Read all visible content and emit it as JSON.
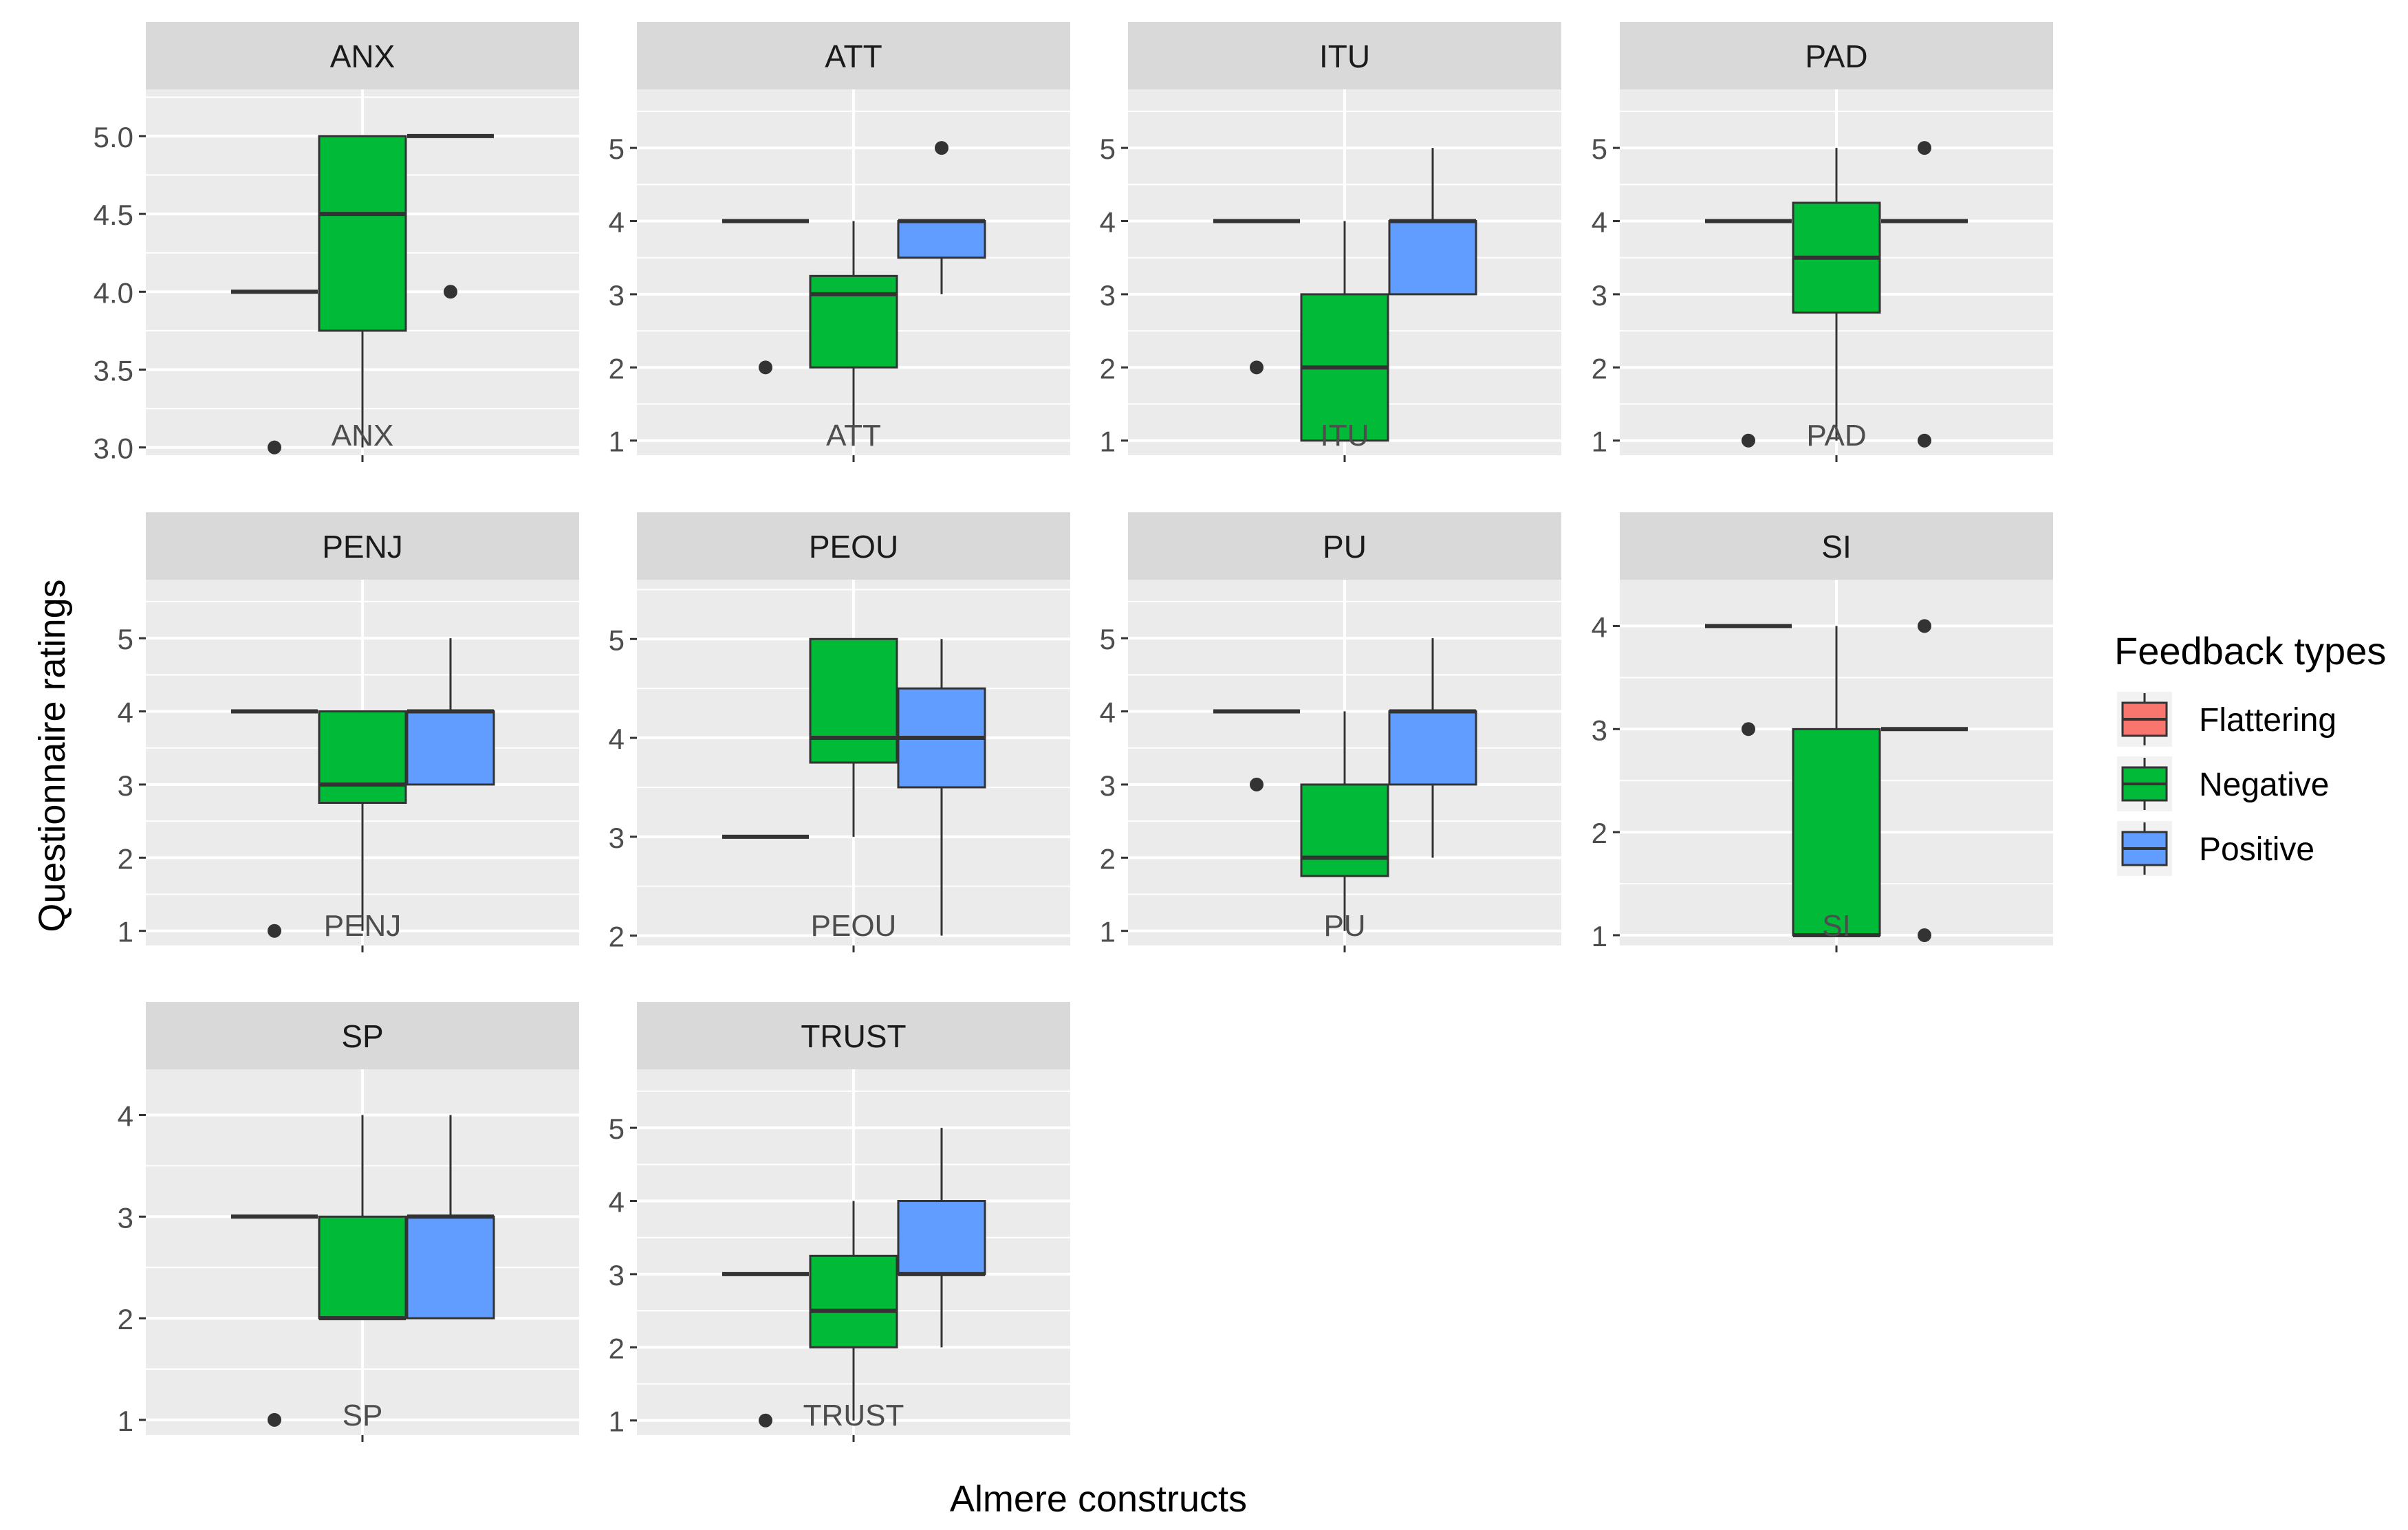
{
  "chart_data": {
    "type": "boxplot",
    "facet_layout": "facet_wrap, 4 columns, free y scales",
    "xlabel": "Almere constructs",
    "ylabel": "Questionnaire ratings",
    "legend": {
      "title": "Feedback types",
      "position": "right",
      "entries": [
        {
          "name": "Flattering",
          "color": "#F8766D"
        },
        {
          "name": "Negative",
          "color": "#00BA38"
        },
        {
          "name": "Positive",
          "color": "#619CFF"
        }
      ]
    },
    "panels": [
      {
        "name": "ANX",
        "ylim": [
          2.95,
          5.3
        ],
        "breaks": [
          3.0,
          3.5,
          4.0,
          4.5,
          5.0
        ],
        "labels": [
          "3.0",
          "3.5",
          "4.0",
          "4.5",
          "5.0"
        ],
        "boxes": [
          {
            "group": "Flattering",
            "min": 4,
            "q1": 4,
            "median": 4,
            "q3": 4,
            "max": 4,
            "outliers": [
              3
            ]
          },
          {
            "group": "Negative",
            "min": 3,
            "q1": 3.75,
            "median": 4.5,
            "q3": 5,
            "max": 5,
            "outliers": []
          },
          {
            "group": "Positive",
            "min": 5,
            "q1": 5,
            "median": 5,
            "q3": 5,
            "max": 5,
            "outliers": [
              4
            ]
          }
        ]
      },
      {
        "name": "ATT",
        "ylim": [
          0.8,
          5.8
        ],
        "breaks": [
          1,
          2,
          3,
          4,
          5
        ],
        "labels": [
          "1",
          "2",
          "3",
          "4",
          "5"
        ],
        "boxes": [
          {
            "group": "Flattering",
            "min": 4,
            "q1": 4,
            "median": 4,
            "q3": 4,
            "max": 4,
            "outliers": [
              2
            ]
          },
          {
            "group": "Negative",
            "min": 1,
            "q1": 2,
            "median": 3,
            "q3": 3.25,
            "max": 4,
            "outliers": []
          },
          {
            "group": "Positive",
            "min": 3,
            "q1": 3.5,
            "median": 4,
            "q3": 4,
            "max": 4,
            "outliers": [
              5
            ]
          }
        ]
      },
      {
        "name": "ITU",
        "ylim": [
          0.8,
          5.8
        ],
        "breaks": [
          1,
          2,
          3,
          4,
          5
        ],
        "labels": [
          "1",
          "2",
          "3",
          "4",
          "5"
        ],
        "boxes": [
          {
            "group": "Flattering",
            "min": 4,
            "q1": 4,
            "median": 4,
            "q3": 4,
            "max": 4,
            "outliers": [
              2
            ]
          },
          {
            "group": "Negative",
            "min": 1,
            "q1": 1,
            "median": 2,
            "q3": 3,
            "max": 4,
            "outliers": []
          },
          {
            "group": "Positive",
            "min": 3,
            "q1": 3,
            "median": 4,
            "q3": 4,
            "max": 5,
            "outliers": []
          }
        ]
      },
      {
        "name": "PAD",
        "ylim": [
          0.8,
          5.8
        ],
        "breaks": [
          1,
          2,
          3,
          4,
          5
        ],
        "labels": [
          "1",
          "2",
          "3",
          "4",
          "5"
        ],
        "boxes": [
          {
            "group": "Flattering",
            "min": 4,
            "q1": 4,
            "median": 4,
            "q3": 4,
            "max": 4,
            "outliers": [
              1
            ]
          },
          {
            "group": "Negative",
            "min": 1,
            "q1": 2.75,
            "median": 3.5,
            "q3": 4.25,
            "max": 5,
            "outliers": []
          },
          {
            "group": "Positive",
            "min": 4,
            "q1": 4,
            "median": 4,
            "q3": 4,
            "max": 4,
            "outliers": [
              5,
              1
            ]
          }
        ]
      },
      {
        "name": "PENJ",
        "ylim": [
          0.8,
          5.8
        ],
        "breaks": [
          1,
          2,
          3,
          4,
          5
        ],
        "labels": [
          "1",
          "2",
          "3",
          "4",
          "5"
        ],
        "boxes": [
          {
            "group": "Flattering",
            "min": 4,
            "q1": 4,
            "median": 4,
            "q3": 4,
            "max": 4,
            "outliers": [
              1
            ]
          },
          {
            "group": "Negative",
            "min": 1,
            "q1": 2.75,
            "median": 3,
            "q3": 4,
            "max": 4,
            "outliers": []
          },
          {
            "group": "Positive",
            "min": 3,
            "q1": 3,
            "median": 4,
            "q3": 4,
            "max": 5,
            "outliers": []
          }
        ]
      },
      {
        "name": "PEOU",
        "ylim": [
          1.9,
          5.6
        ],
        "breaks": [
          2,
          3,
          4,
          5
        ],
        "labels": [
          "2",
          "3",
          "4",
          "5"
        ],
        "boxes": [
          {
            "group": "Flattering",
            "min": 3,
            "q1": 3,
            "median": 3,
            "q3": 3,
            "max": 3,
            "outliers": []
          },
          {
            "group": "Negative",
            "min": 3,
            "q1": 3.75,
            "median": 4,
            "q3": 5,
            "max": 5,
            "outliers": []
          },
          {
            "group": "Positive",
            "min": 2,
            "q1": 3.5,
            "median": 4,
            "q3": 4.5,
            "max": 5,
            "outliers": []
          }
        ]
      },
      {
        "name": "PU",
        "ylim": [
          0.8,
          5.8
        ],
        "breaks": [
          1,
          2,
          3,
          4,
          5
        ],
        "labels": [
          "1",
          "2",
          "3",
          "4",
          "5"
        ],
        "boxes": [
          {
            "group": "Flattering",
            "min": 4,
            "q1": 4,
            "median": 4,
            "q3": 4,
            "max": 4,
            "outliers": [
              3
            ]
          },
          {
            "group": "Negative",
            "min": 1,
            "q1": 1.75,
            "median": 2,
            "q3": 3,
            "max": 4,
            "outliers": []
          },
          {
            "group": "Positive",
            "min": 2,
            "q1": 3,
            "median": 4,
            "q3": 4,
            "max": 5,
            "outliers": []
          }
        ]
      },
      {
        "name": "SI",
        "ylim": [
          0.9,
          4.45
        ],
        "breaks": [
          1,
          2,
          3,
          4
        ],
        "labels": [
          "1",
          "2",
          "3",
          "4"
        ],
        "boxes": [
          {
            "group": "Flattering",
            "min": 4,
            "q1": 4,
            "median": 4,
            "q3": 4,
            "max": 4,
            "outliers": [
              3
            ]
          },
          {
            "group": "Negative",
            "min": 1,
            "q1": 1,
            "median": 1,
            "q3": 3,
            "max": 4,
            "outliers": []
          },
          {
            "group": "Positive",
            "min": 3,
            "q1": 3,
            "median": 3,
            "q3": 3,
            "max": 3,
            "outliers": [
              4,
              1
            ]
          }
        ]
      },
      {
        "name": "SP",
        "ylim": [
          0.85,
          4.45
        ],
        "breaks": [
          1,
          2,
          3,
          4
        ],
        "labels": [
          "1",
          "2",
          "3",
          "4"
        ],
        "boxes": [
          {
            "group": "Flattering",
            "min": 3,
            "q1": 3,
            "median": 3,
            "q3": 3,
            "max": 3,
            "outliers": [
              1
            ]
          },
          {
            "group": "Negative",
            "min": 2,
            "q1": 2,
            "median": 2,
            "q3": 3,
            "max": 4,
            "outliers": []
          },
          {
            "group": "Positive",
            "min": 2,
            "q1": 2,
            "median": 3,
            "q3": 3,
            "max": 4,
            "outliers": []
          }
        ]
      },
      {
        "name": "TRUST",
        "ylim": [
          0.8,
          5.8
        ],
        "breaks": [
          1,
          2,
          3,
          4,
          5
        ],
        "labels": [
          "1",
          "2",
          "3",
          "4",
          "5"
        ],
        "boxes": [
          {
            "group": "Flattering",
            "min": 3,
            "q1": 3,
            "median": 3,
            "q3": 3,
            "max": 3,
            "outliers": [
              1
            ]
          },
          {
            "group": "Negative",
            "min": 1,
            "q1": 2,
            "median": 2.5,
            "q3": 3.25,
            "max": 4,
            "outliers": []
          },
          {
            "group": "Positive",
            "min": 2,
            "q1": 3,
            "median": 3,
            "q3": 4,
            "max": 5,
            "outliers": []
          }
        ]
      }
    ]
  }
}
